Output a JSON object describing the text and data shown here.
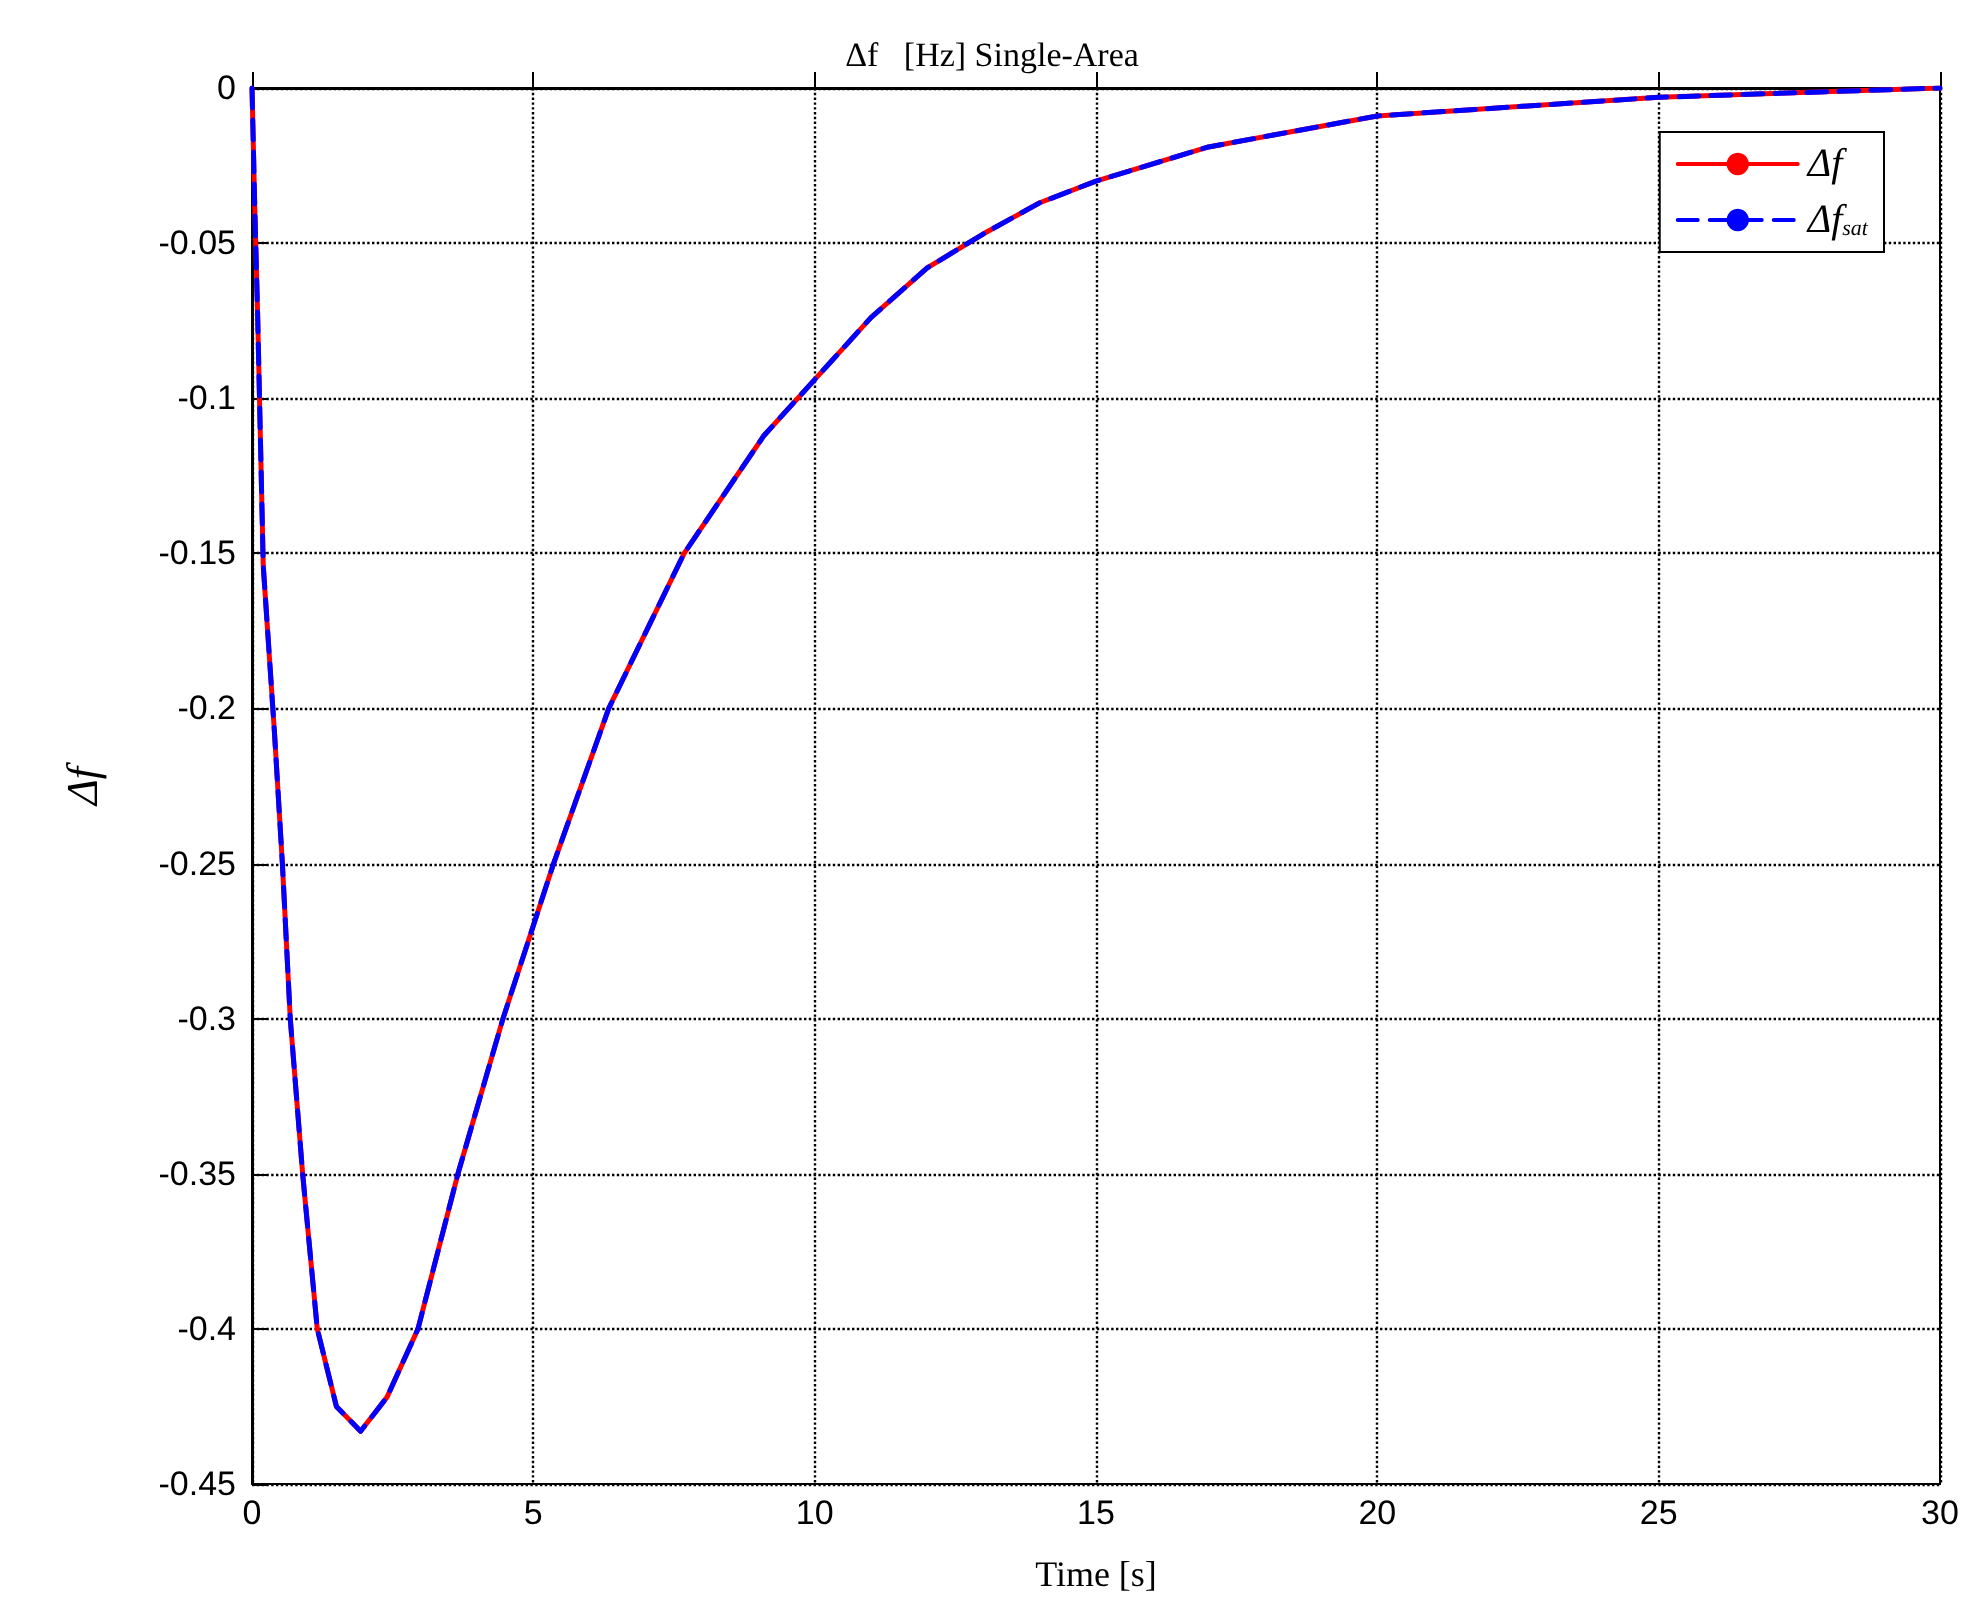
{
  "chart_data": {
    "type": "line",
    "title": "Δf   [Hz] Single-Area",
    "xlabel": "Time [s]",
    "ylabel": "Δf",
    "x": [
      0,
      0.05,
      0.1,
      0.2,
      0.4,
      0.54,
      0.68,
      0.9,
      1.16,
      1.5,
      1.93,
      2.4,
      2.95,
      3.66,
      4.46,
      5.36,
      6.34,
      7.68,
      9.1,
      10,
      11,
      12,
      13,
      14,
      15,
      17,
      20,
      25,
      30
    ],
    "series": [
      {
        "name": "Δf",
        "color": "#ff0000",
        "line_style": "solid",
        "values": [
          0,
          -0.039,
          -0.073,
          -0.154,
          -0.208,
          -0.25,
          -0.3,
          -0.35,
          -0.4,
          -0.425,
          -0.433,
          -0.422,
          -0.4,
          -0.35,
          -0.3,
          -0.25,
          -0.2,
          -0.15,
          -0.112,
          -0.094,
          -0.074,
          -0.058,
          -0.047,
          -0.037,
          -0.03,
          -0.019,
          -0.009,
          -0.003,
          0
        ]
      },
      {
        "name": "Δf$_{sat}$",
        "color": "#0000ff",
        "line_style": "dashed",
        "values": [
          0,
          -0.039,
          -0.073,
          -0.154,
          -0.208,
          -0.25,
          -0.3,
          -0.35,
          -0.4,
          -0.425,
          -0.433,
          -0.422,
          -0.4,
          -0.35,
          -0.3,
          -0.25,
          -0.2,
          -0.15,
          -0.112,
          -0.094,
          -0.074,
          -0.058,
          -0.047,
          -0.037,
          -0.03,
          -0.019,
          -0.009,
          -0.003,
          0
        ]
      }
    ],
    "xlim": [
      0,
      30
    ],
    "xticks": [
      0,
      5,
      10,
      15,
      20,
      25,
      30
    ],
    "ylim": [
      -0.45,
      0
    ],
    "yticks": [
      -0.45,
      -0.4,
      -0.35,
      -0.3,
      -0.25,
      -0.2,
      -0.15,
      -0.1,
      -0.05,
      0
    ],
    "grid": true,
    "legend": "top right",
    "marker": "none"
  }
}
